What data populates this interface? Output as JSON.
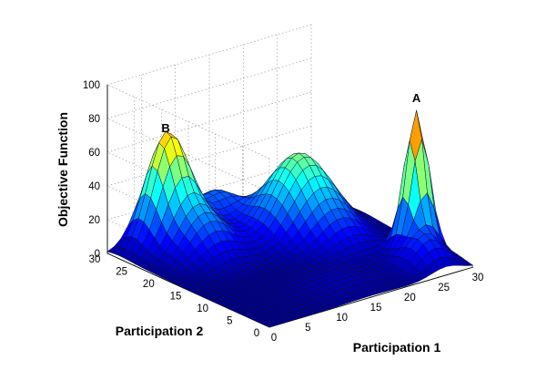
{
  "chart_data": {
    "type": "surface",
    "xlabel": "Participation 1",
    "ylabel": "Participation 2",
    "zlabel": "Objective Function",
    "xlim": [
      0,
      30
    ],
    "ylim": [
      0,
      30
    ],
    "zlim": [
      0,
      100
    ],
    "xticks": [
      0,
      5,
      10,
      15,
      20,
      25,
      30
    ],
    "yticks": [
      0,
      5,
      10,
      15,
      20,
      25,
      30
    ],
    "zticks": [
      0,
      20,
      40,
      60,
      80,
      100
    ],
    "grid": true,
    "colormap": "jet",
    "grid_resolution": 30,
    "peaks": [
      {
        "label": "A",
        "x": 28,
        "y": 8,
        "z": 83
      },
      {
        "label": "B",
        "x": 7,
        "y": 28,
        "z": 61
      }
    ],
    "components": [
      {
        "x": 28,
        "y": 8,
        "height": 80,
        "sx": 1.4,
        "sy": 1.4
      },
      {
        "x": 7,
        "y": 28,
        "height": 58,
        "sx": 2.6,
        "sy": 2.2
      },
      {
        "x": 8,
        "y": 23,
        "height": 26,
        "sx": 3.0,
        "sy": 3.5
      },
      {
        "x": 15,
        "y": 29,
        "height": 19,
        "sx": 2.5,
        "sy": 2.6
      },
      {
        "x": 21,
        "y": 21,
        "height": 47,
        "sx": 3.8,
        "sy": 3.8
      },
      {
        "x": 26,
        "y": 4,
        "height": 18,
        "sx": 2.2,
        "sy": 2.5
      },
      {
        "x": 22,
        "y": 14,
        "height": 10,
        "sx": 3.0,
        "sy": 3.0
      },
      {
        "x": 15,
        "y": 6,
        "height": 4,
        "sx": 4.0,
        "sy": 3.5
      }
    ]
  }
}
